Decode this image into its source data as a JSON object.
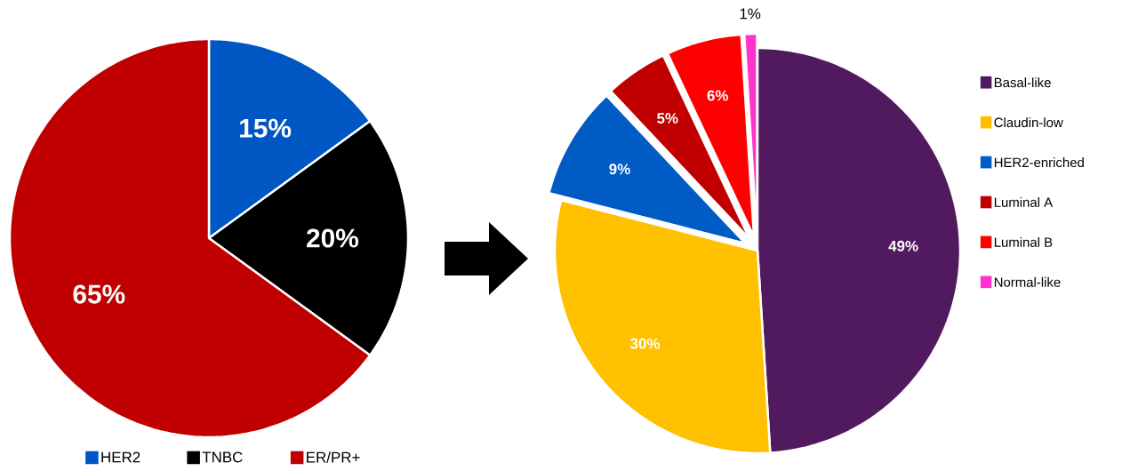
{
  "chart_data": [
    {
      "type": "pie",
      "categories": [
        "HER2",
        "TNBC",
        "ER/PR+"
      ],
      "values": [
        15,
        20,
        65
      ],
      "colors": [
        "#0057c4",
        "#000000",
        "#c00000"
      ],
      "value_labels": [
        "15%",
        "20%",
        "65%"
      ],
      "legend": "bottom"
    },
    {
      "type": "pie",
      "categories": [
        "Basal-like",
        "Claudin-low",
        "HER2-enriched",
        "Luminal A",
        "Luminal B",
        "Normal-like"
      ],
      "values": [
        49,
        30,
        9,
        5,
        6,
        1
      ],
      "colors": [
        "#521a5e",
        "#ffc000",
        "#005bc5",
        "#c00000",
        "#ff0000",
        "#ff33cc"
      ],
      "value_labels": [
        "49%",
        "30%",
        "9%",
        "5%",
        "6%",
        "1%"
      ],
      "legend": "right"
    }
  ]
}
